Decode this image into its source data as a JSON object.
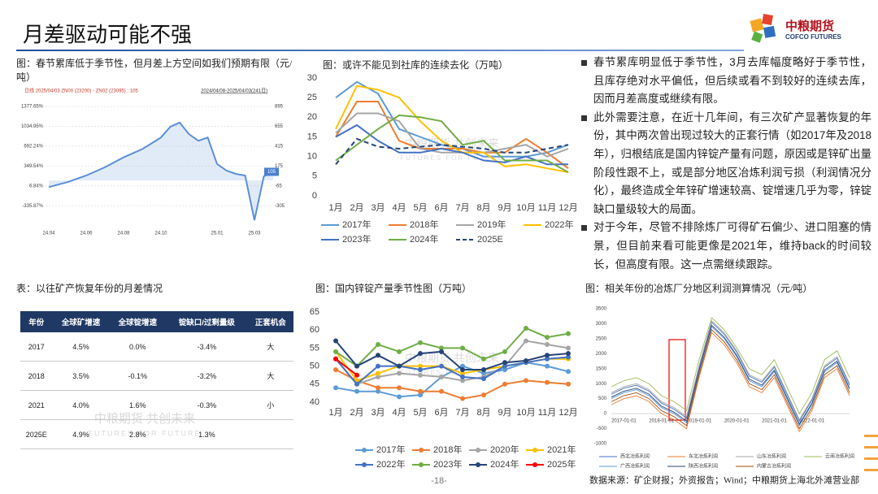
{
  "header": {
    "title": "月差驱动可能不强"
  },
  "logo": {
    "name": "中粮期货",
    "name_en": "COFCO FUTURES"
  },
  "bullets": [
    "春节累库明显低于季节性，3月去库幅度略好于季节性，且库存绝对水平偏低，但后续或看不到较好的连续去库，因而月差高度或继续有限。",
    "此外需要注意，在近十几年间，有三次矿产显著恢复的年份，其中两次曾出现过较大的正套行情（如2017年及2018年），归根结底是国内锌锭产量有问题，原因或是锌矿出量阶段性跟不上，或是部分地区冶炼利润亏损（利润情况分化），最终造成全年锌矿增速较高、锭增速几乎为零，锌锭缺口量级较大的局面。",
    "对于今年，尽管不排除炼厂可得矿石偏少、进口阻塞的情景，但目前来看可能更像是2021年，维持back的时间较长，但高度有限。这一点需继续跟踪。"
  ],
  "table": {
    "title": "表：以往矿产恢复年份的月差情况",
    "columns": [
      "年份",
      "全球矿增速",
      "全球锭增速",
      "锭缺口/过剩量级",
      "正套机会"
    ],
    "rows": [
      [
        "2017",
        "4.5%",
        "0.0%",
        "-3.4%",
        "大"
      ],
      [
        "2018",
        "3.5%",
        "-0.1%",
        "-3.2%",
        "大"
      ],
      [
        "2021",
        "4.0%",
        "1.6%",
        "-0.3%",
        "小"
      ],
      [
        "2025E",
        "4.9%",
        "2.8%",
        "1.3%"
      ]
    ]
  },
  "watermark": {
    "text": "中粮期货  共创未来",
    "subtext": "·FUTURES FOR FUTURE·"
  },
  "source": "数据来源：矿企财报；外资报告；Wind；中粮期货上海北外滩营业部",
  "page_number": "-18-",
  "chart_data": [
    {
      "type": "area",
      "title": "图：春节累库低于季节性，但月差上方空间如我们预期有限（元/吨）",
      "info": "日线 2025/04/03 ZN00 (23200) - ZN02 (23095) : 105",
      "range": "2024/04/08-2025/04/03(241日)",
      "categories": [
        "24.04",
        null,
        null,
        null,
        "24.06",
        null,
        null,
        null,
        "24.08",
        null,
        null,
        null,
        "24.10",
        null,
        null,
        null,
        null,
        null,
        "25.01",
        null,
        null,
        null,
        "25.03",
        null,
        null
      ],
      "series": [
        {
          "color": "#5b8fd6",
          "axis": "y2",
          "values": [
            -80,
            -50,
            -20,
            20,
            60,
            110,
            160,
            220,
            280,
            330,
            380,
            450,
            520,
            650,
            700,
            560,
            480,
            520,
            200,
            120,
            80,
            60,
            -480,
            50,
            105
          ]
        }
      ],
      "ylim": [
        -600,
        1450
      ],
      "yticks": [
        {
          "value": -335.87,
          "label": "-335.87%"
        },
        {
          "value": 6.84,
          "label": "6.84%"
        },
        {
          "value": 349.54,
          "label": "349.54%"
        },
        {
          "value": 692.24,
          "label": "692.24%"
        },
        {
          "value": 1034.95,
          "label": "1034.95%"
        },
        {
          "value": 1377.65,
          "label": "1377.65%"
        }
      ],
      "y2lim": [
        -490,
        945
      ],
      "y2ticks": [
        -305,
        -65,
        175,
        415,
        655,
        895
      ],
      "grid": true
    },
    {
      "type": "line",
      "title": "图：或许不能见到社库的连续去化（万吨）",
      "categories": [
        "1月",
        "2月",
        "3月",
        "4月",
        "5月",
        "6月",
        "7月",
        "8月",
        "9月",
        "10月",
        "11月",
        "12月"
      ],
      "series": [
        {
          "name": "2017年",
          "color": "#5b9bd5",
          "values": [
            25,
            29,
            26,
            17,
            15,
            13,
            12,
            10,
            10,
            10,
            11,
            13
          ]
        },
        {
          "name": "2018年",
          "color": "#ed7d31",
          "values": [
            15,
            24,
            24,
            14,
            12,
            12,
            12,
            11,
            11,
            14.5,
            11,
            7
          ]
        },
        {
          "name": "2019年",
          "color": "#a5a5a5",
          "values": [
            16,
            21,
            21,
            19,
            12,
            11,
            11,
            11,
            12,
            13,
            10,
            12
          ]
        },
        {
          "name": "2022年",
          "color": "#ffc000",
          "values": [
            17,
            28,
            27,
            25,
            19,
            14,
            11,
            11,
            7.5,
            8,
            7,
            6
          ]
        },
        {
          "name": "2023年",
          "color": "#4472c4",
          "values": [
            15,
            18,
            14,
            11,
            11,
            12,
            11,
            9,
            8.5,
            10,
            8,
            8
          ]
        },
        {
          "name": "2024年",
          "color": "#70ad47",
          "values": [
            9,
            13,
            17,
            20.5,
            20,
            19,
            13,
            14,
            9,
            9,
            9,
            6
          ]
        },
        {
          "name": "2025E",
          "color": "#264478",
          "dash": true,
          "values": [
            8,
            14.5,
            12.5,
            12,
            12.5,
            13,
            12.5,
            12,
            11,
            11,
            12,
            13
          ]
        }
      ],
      "ylim": [
        0,
        30
      ],
      "yticks": [
        0,
        5,
        10,
        15,
        20,
        25,
        30
      ],
      "grid": false
    },
    {
      "type": "line",
      "title": "图：国内锌锭产量季节性图（万吨）",
      "categories": [
        "1月",
        "2月",
        "3月",
        "4月",
        "5月",
        "6月",
        "7月",
        "8月",
        "9月",
        "10月",
        "11月",
        "12月"
      ],
      "markers": true,
      "series": [
        {
          "name": "2017年",
          "color": "#5b9bd5",
          "values": [
            44,
            43,
            43,
            41.5,
            42,
            47,
            50,
            48,
            49,
            51,
            50,
            48.5
          ]
        },
        {
          "name": "2018年",
          "color": "#ed7d31",
          "values": [
            49,
            46,
            44,
            44,
            43,
            43,
            41,
            42,
            45,
            46,
            45.5,
            45
          ]
        },
        {
          "name": "2020年",
          "color": "#a5a5a5",
          "values": [
            52,
            45,
            47,
            48,
            47.5,
            47,
            46,
            47,
            50,
            57,
            56,
            55
          ]
        },
        {
          "name": "2021年",
          "color": "#ffc000",
          "values": [
            54,
            46,
            48,
            50,
            50,
            50,
            48,
            49,
            50,
            51,
            52,
            52
          ]
        },
        {
          "name": "2022年",
          "color": "#4472c4",
          "values": [
            52,
            45,
            50,
            50,
            49,
            50,
            47,
            46.5,
            50,
            51,
            52,
            52.5
          ]
        },
        {
          "name": "2023年",
          "color": "#70ad47",
          "values": [
            54,
            50,
            56,
            54,
            56.5,
            55,
            55,
            52,
            54,
            60.5,
            58,
            59
          ]
        },
        {
          "name": "2024年",
          "color": "#264478",
          "values": [
            57,
            50,
            53,
            50,
            53.5,
            54,
            49,
            49,
            51,
            51.5,
            53,
            53.5
          ]
        },
        {
          "name": "2025年",
          "color": "#ff0000",
          "values": [
            52,
            47.5,
            null,
            null,
            null,
            null,
            null,
            null,
            null,
            null,
            null,
            null
          ]
        }
      ],
      "ylim": [
        40,
        65
      ],
      "yticks": [
        40,
        45,
        50,
        55,
        60,
        65
      ],
      "grid": false
    },
    {
      "type": "line",
      "title": "图：相关年份的冶炼厂分地区利润测算情况（元/吨）",
      "categories": [
        null,
        "2017-01-01",
        null,
        null,
        "2018-01-01",
        null,
        null,
        "2019-01-01",
        null,
        null,
        "2020-01-01",
        null,
        null,
        "2021-01-01",
        null,
        null,
        "2022-01-01",
        null,
        null,
        null
      ],
      "series": [
        {
          "name": "西北冶炼利润",
          "color": "#4472c4",
          "values": [
            650,
            850,
            950,
            750,
            350,
            150,
            -150,
            1550,
            3050,
            2650,
            2050,
            1250,
            1050,
            1550,
            650,
            -250,
            450,
            1550,
            1850,
            950
          ]
        },
        {
          "name": "东北冶炼利润",
          "color": "#ed7d31",
          "values": [
            300,
            500,
            600,
            400,
            0,
            -200,
            -500,
            1200,
            2700,
            2300,
            1700,
            900,
            700,
            1200,
            300,
            -600,
            100,
            1200,
            1500,
            600
          ]
        },
        {
          "name": "山东冶炼利润",
          "color": "#a5a5a5",
          "values": [
            700,
            900,
            1000,
            800,
            400,
            200,
            -100,
            1600,
            3100,
            2700,
            2100,
            1300,
            1100,
            1600,
            700,
            -200,
            500,
            1600,
            1900,
            1000
          ]
        },
        {
          "name": "云南冶炼利润",
          "color": "#9bbb59",
          "values": [
            900,
            1100,
            1200,
            1000,
            600,
            400,
            100,
            1800,
            3200,
            2800,
            2200,
            1500,
            1300,
            1800,
            900,
            0,
            700,
            1800,
            2100,
            1200
          ]
        },
        {
          "name": "广西冶炼利润",
          "color": "#5b9bd5",
          "values": [
            500,
            700,
            800,
            600,
            200,
            0,
            -300,
            1400,
            2900,
            2500,
            1900,
            1100,
            900,
            1400,
            500,
            -400,
            300,
            1400,
            1700,
            800
          ]
        },
        {
          "name": "陕西冶炼利润",
          "color": "#264478",
          "values": [
            550,
            750,
            850,
            650,
            250,
            50,
            -250,
            1450,
            2950,
            2550,
            1950,
            1150,
            950,
            1450,
            550,
            -350,
            350,
            1450,
            1750,
            850
          ]
        },
        {
          "name": "内蒙古冶炼利润",
          "color": "#9e480e",
          "values": [
            400,
            600,
            700,
            500,
            100,
            -100,
            -400,
            1300,
            2800,
            2400,
            1800,
            1000,
            800,
            1300,
            400,
            -500,
            200,
            1300,
            1600,
            700
          ]
        }
      ],
      "ylim": [
        -1000,
        3500
      ],
      "yticks": [
        -1000,
        -500,
        0,
        500,
        1000,
        1500,
        2000,
        2500,
        3000,
        3500
      ],
      "grid": false
    }
  ]
}
